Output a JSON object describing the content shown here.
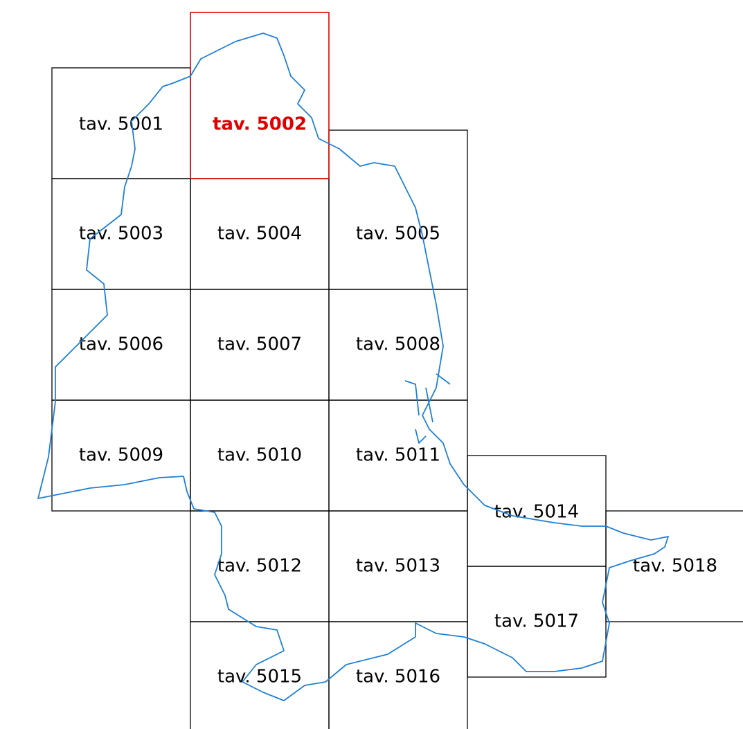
{
  "tiles": [
    "tav. 5001",
    "tav. 5002",
    "tav. 5003",
    "tav. 5004",
    "tav. 5005",
    "tav. 5006",
    "tav. 5007",
    "tav. 5008",
    "tav. 5009",
    "tav. 5010",
    "tav. 5011",
    "tav. 5012",
    "tav. 5013",
    "tav. 5014",
    "tav. 5015",
    "tav. 5016",
    "tav. 5017",
    "tav. 5018"
  ]
}
